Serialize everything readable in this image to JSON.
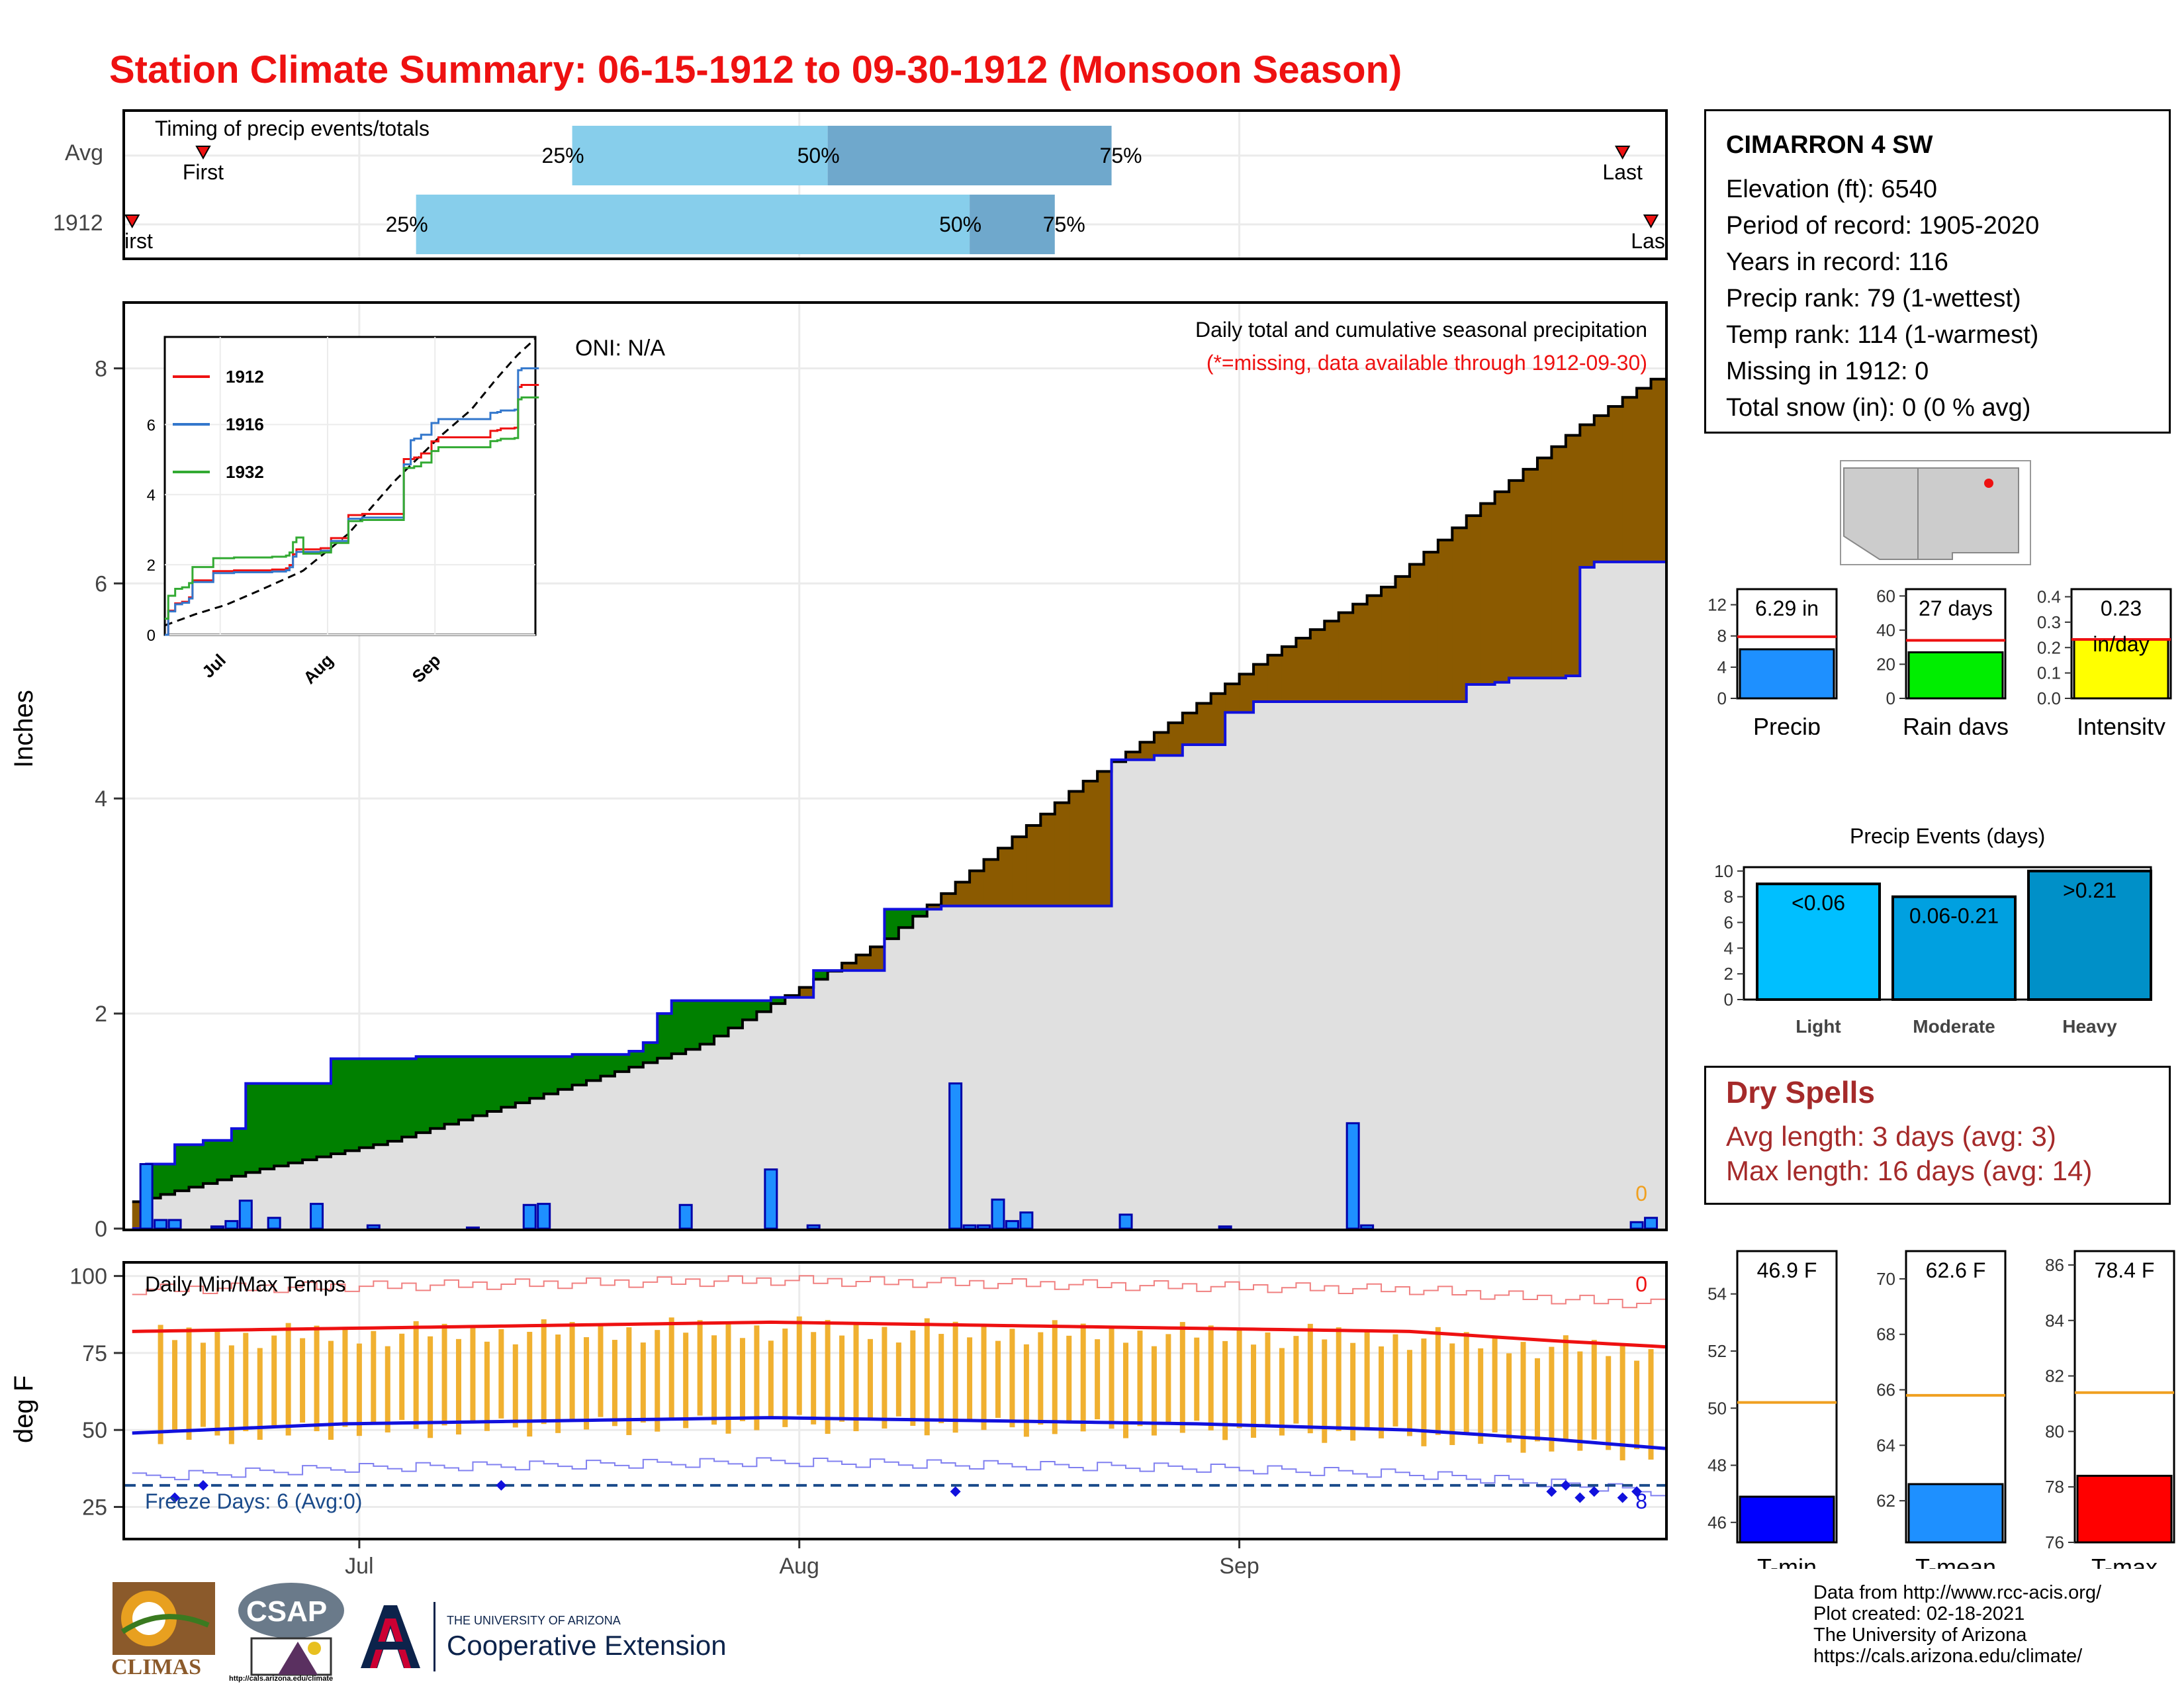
{
  "title": "Station Climate Summary: 06-15-1912 to 09-30-1912 (Monsoon Season)",
  "colors": {
    "title": "#ee1111",
    "cumulative_surplus": "#008000",
    "cumulative_deficit": "#8b5a00",
    "normal_area": "#e0e0e0",
    "daily_bar": "#1e90ff",
    "temp_bar": "#f0b030",
    "tmax_line": "#ee1111",
    "tmin_line": "#1111dd",
    "dry_spell_text": "#a52a2a",
    "precip_bar": "#1e90ff",
    "raindays_bar": "#00ee00",
    "intensity_bar": "#ffff00",
    "tmin_box": "#0000ff",
    "tmean_box": "#1e90ff",
    "tmax_box": "#ff0000"
  },
  "timing": {
    "title": "Timing of precip events/totals",
    "rows": [
      {
        "label": "Avg",
        "first": "First",
        "last": "Last",
        "p25": "25%",
        "p50": "50%",
        "p75": "75%",
        "first_date": "1912-06-20",
        "last_date": "1912-09-28",
        "d25": "1912-07-16",
        "d50": "1912-08-03",
        "d75": "1912-08-23"
      },
      {
        "label": "1912",
        "first": "First",
        "last": "Last",
        "p25": "25%",
        "p50": "50%",
        "p75": "75%",
        "first_date": "1912-06-15",
        "last_date": "1912-09-30",
        "d25": "1912-07-05",
        "d50": "1912-08-13",
        "d75": "1912-08-19"
      }
    ]
  },
  "precip_panel": {
    "ylabel": "Inches",
    "oni": "ONI: N/A",
    "header": "Daily total and cumulative seasonal precipitation",
    "subheader": "(*=missing, data available through 1912-09-30)",
    "missing_count": "0",
    "yticks": [
      "0",
      "2",
      "4",
      "6",
      "8"
    ],
    "xticks": [
      "Jul",
      "Aug",
      "Sep"
    ]
  },
  "inset": {
    "legend": [
      "1912",
      "1916",
      "1932"
    ],
    "series_colors": [
      "#ee1111",
      "#3377cc",
      "#33aa33"
    ],
    "yticks": [
      "0",
      "2",
      "4",
      "6"
    ],
    "xticks": [
      "Jul",
      "Aug",
      "Sep"
    ]
  },
  "temp_panel": {
    "ylabel": "deg F",
    "title": "Daily Min/Max Temps",
    "freeze": "Freeze Days: 6 (Avg:0)",
    "missing_count": "0",
    "freeze_missing": "8",
    "yticks": [
      "25",
      "50",
      "75",
      "100"
    ],
    "xticks": [
      "Jul",
      "Aug",
      "Sep"
    ]
  },
  "station": {
    "name": "CIMARRON 4 SW",
    "lines": [
      "Elevation (ft): 6540",
      "Period of record: 1905-2020",
      "Years in record: 116",
      "Precip rank: 79 (1-wettest)",
      "Temp rank: 114 (1-warmest)",
      "Missing in 1912: 0",
      "Total snow (in): 0 (0 % avg)"
    ]
  },
  "mini_bars": [
    {
      "label": "Precip",
      "value_text": "6.29 in",
      "value": 6.29,
      "avg": 7.9,
      "ymax": 14,
      "yticks": [
        "0",
        "4",
        "8",
        "12"
      ],
      "tickvals": [
        0,
        4,
        8,
        12
      ]
    },
    {
      "label": "Rain days",
      "value_text": "27 days",
      "value": 27,
      "avg": 34,
      "ymax": 64,
      "yticks": [
        "0",
        "20",
        "40",
        "60"
      ],
      "tickvals": [
        0,
        20,
        40,
        60
      ]
    },
    {
      "label": "Intensity",
      "value_text": "0.23",
      "value_text2": "in/day",
      "value": 0.233,
      "avg": 0.232,
      "ymax": 0.43,
      "yticks": [
        "0.0",
        "0.1",
        "0.2",
        "0.3",
        "0.4"
      ],
      "tickvals": [
        0,
        0.1,
        0.2,
        0.3,
        0.4
      ]
    }
  ],
  "precip_events": {
    "title": "Precip Events (days)",
    "categories": [
      "Light",
      "Moderate",
      "Heavy"
    ],
    "labels": [
      "<0.06",
      "0.06-0.21",
      ">0.21"
    ],
    "values": [
      9,
      8,
      10
    ],
    "colors": [
      "#00bfff",
      "#00a0e0",
      "#0090c8"
    ],
    "yticks": [
      "0",
      "2",
      "4",
      "6",
      "8",
      "10"
    ]
  },
  "dry_spells": {
    "title": "Dry Spells",
    "avg": "Avg length: 3 days (avg: 3)",
    "max": "Max length: 16 days (avg: 14)"
  },
  "temp_boxes": [
    {
      "label": "T-min",
      "value_text": "46.9 F",
      "value": 46.9,
      "avg": 50.2,
      "ymin": 45.3,
      "ymax": 55.5,
      "yticks": [
        "46",
        "48",
        "50",
        "52",
        "54"
      ],
      "tickvals": [
        46,
        48,
        50,
        52,
        54
      ]
    },
    {
      "label": "T-mean",
      "value_text": "62.6 F",
      "value": 62.6,
      "avg": 65.8,
      "ymin": 60.5,
      "ymax": 71.0,
      "yticks": [
        "62",
        "64",
        "66",
        "68",
        "70"
      ],
      "tickvals": [
        62,
        64,
        66,
        68,
        70
      ]
    },
    {
      "label": "T-max",
      "value_text": "78.4 F",
      "value": 78.4,
      "avg": 81.4,
      "ymin": 76.0,
      "ymax": 86.5,
      "yticks": [
        "76",
        "78",
        "80",
        "82",
        "84",
        "86"
      ],
      "tickvals": [
        76,
        78,
        80,
        82,
        84,
        86
      ]
    }
  ],
  "credits": [
    "Data from http://www.rcc-acis.org/",
    "Plot created: 02-18-2021",
    "The University of Arizona",
    "https://cals.arizona.edu/climate/"
  ],
  "logos": {
    "climas": "CLIMAS",
    "csap": "CSAP",
    "csap_url": "http://cals.arizona.edu/climate",
    "ua_small": "THE UNIVERSITY OF ARIZONA",
    "ua_coop": "Cooperative Extension"
  },
  "chart_data": [
    {
      "type": "area",
      "name_role": "cumulative precipitation 1912 vs average",
      "x_start": "1912-06-15",
      "x_end": "1912-09-30",
      "ylim": [
        0,
        8.6
      ],
      "avg_cumulative": [
        [
          0,
          0.25
        ],
        [
          5,
          0.4
        ],
        [
          10,
          0.55
        ],
        [
          20,
          0.8
        ],
        [
          30,
          1.15
        ],
        [
          45,
          1.7
        ],
        [
          60,
          2.7
        ],
        [
          75,
          4.1
        ],
        [
          90,
          5.3
        ],
        [
          100,
          6.0
        ],
        [
          108,
          6.8
        ],
        [
          115,
          7.45
        ],
        [
          121,
          7.9
        ]
      ],
      "obs_cumulative": [
        [
          0,
          0.0
        ],
        [
          1,
          0.6
        ],
        [
          3,
          0.78
        ],
        [
          6,
          0.82
        ],
        [
          8,
          0.93
        ],
        [
          9,
          1.2
        ],
        [
          10,
          1.35
        ],
        [
          17,
          1.58
        ],
        [
          24,
          1.6
        ],
        [
          38,
          1.62
        ],
        [
          43,
          1.65
        ],
        [
          44,
          1.67
        ],
        [
          45,
          1.73
        ],
        [
          46,
          2.0
        ],
        [
          47,
          2.12
        ],
        [
          56,
          2.15
        ],
        [
          60,
          2.4
        ],
        [
          66,
          2.97
        ],
        [
          71,
          3.0
        ],
        [
          86,
          4.36
        ],
        [
          89,
          4.4
        ],
        [
          92,
          4.5
        ],
        [
          96,
          4.8
        ],
        [
          98,
          4.9
        ],
        [
          117,
          5.06
        ],
        [
          120,
          5.08
        ],
        [
          121,
          5.12
        ],
        [
          126,
          5.14
        ],
        [
          127,
          6.15
        ],
        [
          128,
          6.2
        ],
        [
          134,
          6.2
        ]
      ],
      "daily": [
        [
          1,
          0.6
        ],
        [
          2,
          0.08
        ],
        [
          3,
          0.08
        ],
        [
          6,
          0.02
        ],
        [
          7,
          0.07
        ],
        [
          8,
          0.26
        ],
        [
          10,
          0.1
        ],
        [
          13,
          0.23
        ],
        [
          17,
          0.03
        ],
        [
          24,
          0.01
        ],
        [
          28,
          0.22
        ],
        [
          29,
          0.23
        ],
        [
          39,
          0.22
        ],
        [
          45,
          0.55
        ],
        [
          48,
          0.03
        ],
        [
          58,
          1.35
        ],
        [
          59,
          0.03
        ],
        [
          60,
          0.03
        ],
        [
          61,
          0.27
        ],
        [
          62,
          0.07
        ],
        [
          63,
          0.15
        ],
        [
          70,
          0.13
        ],
        [
          77,
          0.02
        ],
        [
          86,
          0.98
        ],
        [
          87,
          0.03
        ],
        [
          106,
          0.06
        ],
        [
          107,
          0.1
        ]
      ]
    },
    {
      "type": "line",
      "name_role": "temperature daily",
      "x_start": "1912-06-15",
      "ylim": [
        15,
        104
      ],
      "tmax_avg": [
        [
          0,
          82
        ],
        [
          15,
          83
        ],
        [
          30,
          84
        ],
        [
          45,
          85
        ],
        [
          60,
          84
        ],
        [
          75,
          83
        ],
        [
          90,
          82
        ],
        [
          100,
          79
        ],
        [
          108,
          77
        ],
        [
          115,
          74
        ]
      ],
      "tmin_avg": [
        [
          0,
          49
        ],
        [
          15,
          52
        ],
        [
          30,
          53
        ],
        [
          45,
          54
        ],
        [
          60,
          53
        ],
        [
          75,
          52
        ],
        [
          90,
          50
        ],
        [
          100,
          47
        ],
        [
          108,
          44
        ],
        [
          115,
          40
        ]
      ],
      "freeze_line": 32
    }
  ]
}
